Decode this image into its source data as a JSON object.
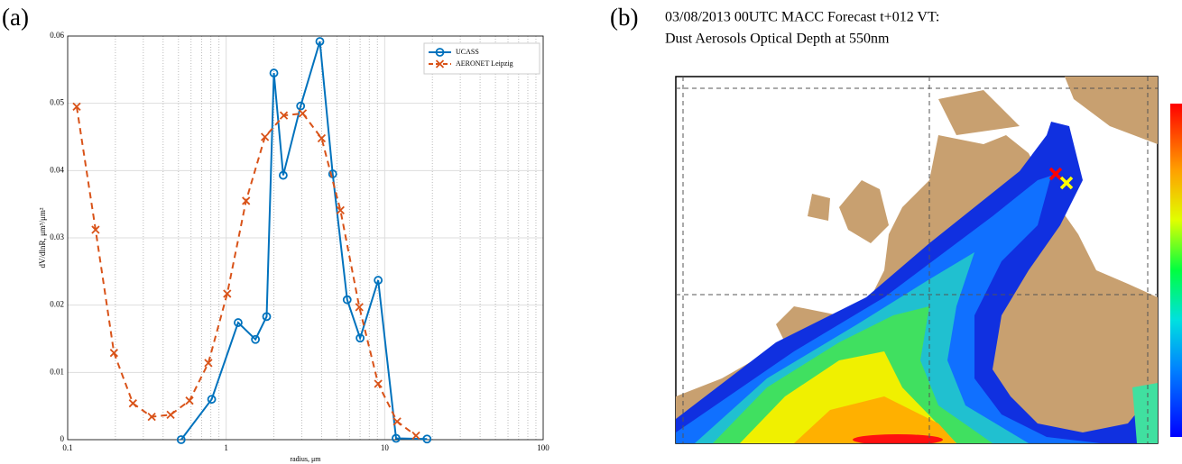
{
  "panel_a": {
    "label": "(a)"
  },
  "panel_b": {
    "label": "(b)",
    "title_lines": [
      "03/08/2013 00UTC MACC Forecast t+012 VT:",
      "Dust Aerosols Optical Depth at 550nm"
    ]
  },
  "chart_data": {
    "type": "line",
    "x_label": "radius, μm",
    "y_label": "dV/dlnR, μm³/μm²",
    "xscale": "log",
    "xlim": [
      0.1,
      100
    ],
    "ylim": [
      0,
      0.06
    ],
    "xticks": [
      0.1,
      1,
      10,
      100
    ],
    "yticks": [
      0,
      0.01,
      0.02,
      0.03,
      0.04,
      0.05,
      0.06
    ],
    "xminorticks": [
      0.2,
      0.3,
      0.4,
      0.5,
      0.6,
      0.7,
      0.8,
      0.9,
      2,
      3,
      4,
      5,
      6,
      7,
      8,
      9,
      20,
      30,
      40,
      50,
      60,
      70,
      80,
      90
    ],
    "grid": true,
    "legend": "upper right",
    "series": [
      {
        "name": "UCASS",
        "color": "#0072bd",
        "style": "solid",
        "marker": "circle",
        "x": [
          0.52,
          0.81,
          1.19,
          1.53,
          1.8,
          2.0,
          2.29,
          2.95,
          3.9,
          4.7,
          5.8,
          7.0,
          9.1,
          11.8,
          18.5
        ],
        "values": [
          0,
          0.006,
          0.0174,
          0.0149,
          0.0183,
          0.0545,
          0.0393,
          0.0496,
          0.0592,
          0.0395,
          0.0208,
          0.0151,
          0.0237,
          0.0002,
          0.0001
        ]
      },
      {
        "name": "AERONET Leipzig",
        "color": "#d95319",
        "style": "dashed",
        "marker": "x",
        "x": [
          0.114,
          0.15,
          0.196,
          0.258,
          0.339,
          0.446,
          0.587,
          0.772,
          1.015,
          1.335,
          1.756,
          2.31,
          3.04,
          4.0,
          5.26,
          6.92,
          9.1,
          11.98,
          15.76
        ],
        "values": [
          0.0495,
          0.0312,
          0.0129,
          0.0054,
          0.0034,
          0.0037,
          0.0058,
          0.0114,
          0.0217,
          0.0355,
          0.045,
          0.0482,
          0.0485,
          0.0448,
          0.0341,
          0.0197,
          0.0083,
          0.0027,
          0.0006
        ]
      }
    ]
  }
}
